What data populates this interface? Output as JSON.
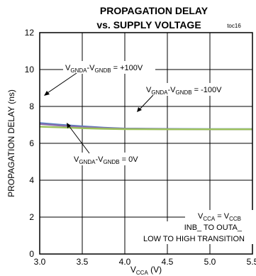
{
  "chart_data": {
    "type": "line",
    "title": "PROPAGATION DELAY",
    "subtitle": "vs. SUPPLY VOLTAGE",
    "code": "toc16",
    "xlabel": {
      "main": "V",
      "sub": "CCA",
      "unit": " (V)"
    },
    "ylabel": "PROPAGATION DELAY (ns)",
    "xlim": [
      3.0,
      5.5
    ],
    "ylim": [
      0,
      12
    ],
    "xticks": [
      3.0,
      3.5,
      4.0,
      4.5,
      5.0,
      5.5
    ],
    "xtick_labels": [
      "3.0",
      "3.5",
      "4.0",
      "4.5",
      "5.0",
      "5.5"
    ],
    "yticks": [
      0,
      2,
      4,
      6,
      8,
      10,
      12
    ],
    "ytick_labels": [
      "0",
      "2",
      "4",
      "6",
      "8",
      "10",
      "12"
    ],
    "grid": true,
    "series": [
      {
        "color": "#4a7fc0",
        "x": [
          3.0,
          3.25,
          3.5,
          3.75,
          4.0,
          4.5,
          5.0,
          5.5
        ],
        "y": [
          7.1,
          7.0,
          6.92,
          6.85,
          6.8,
          6.78,
          6.77,
          6.77
        ]
      },
      {
        "color": "#8a6fae",
        "x": [
          3.0,
          3.25,
          3.5,
          3.75,
          4.0,
          4.5,
          5.0,
          5.5
        ],
        "y": [
          7.05,
          6.96,
          6.89,
          6.83,
          6.79,
          6.77,
          6.76,
          6.76
        ]
      },
      {
        "color": "#9cc15a",
        "x": [
          3.0,
          3.25,
          3.5,
          3.75,
          4.0,
          4.5,
          5.0,
          5.5
        ],
        "y": [
          6.9,
          6.86,
          6.82,
          6.79,
          6.77,
          6.76,
          6.76,
          6.76
        ]
      }
    ],
    "annotations": {
      "plus100": {
        "pre": "V",
        "s1": "GNDA",
        "mid": "-V",
        "s2": "GNDB",
        "post": " = +100V"
      },
      "minus100": {
        "pre": "V",
        "s1": "GNDA",
        "mid": "-V",
        "s2": "GNDB",
        "post": " = -100V"
      },
      "zero": {
        "pre": "V",
        "s1": "GNDA",
        "mid": "-V",
        "s2": "GNDB",
        "post": " = 0V"
      },
      "cond1": {
        "pre": "V",
        "s1": "CCA",
        "mid": " = V",
        "s2": "CCB"
      },
      "cond2": "INB_ TO OUTA_",
      "cond3": "LOW TO HIGH TRANSITION"
    }
  }
}
